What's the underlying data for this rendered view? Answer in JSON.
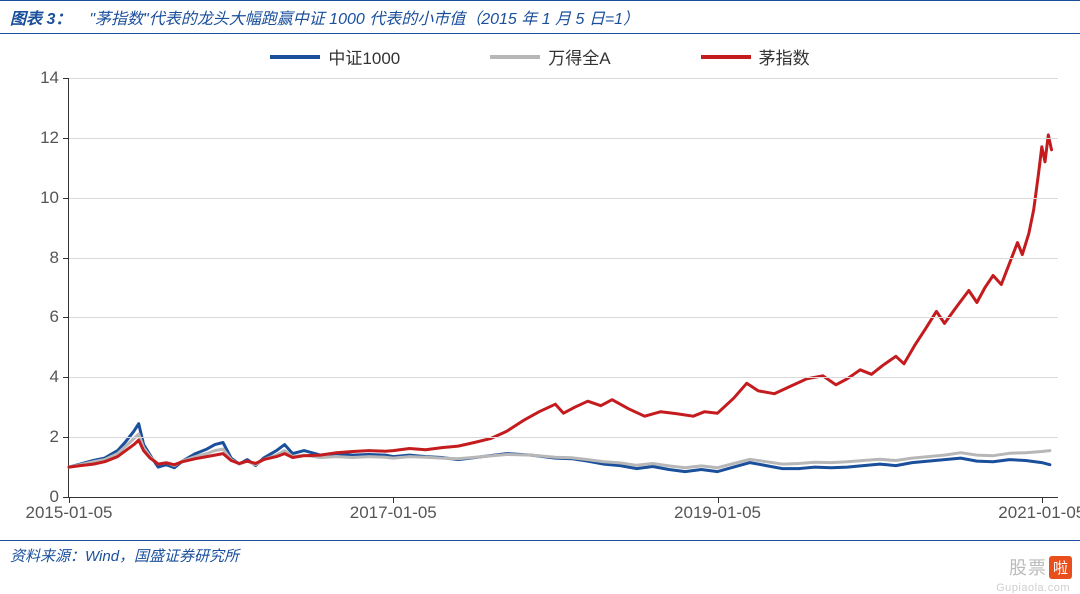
{
  "header": {
    "label": "图表 3：",
    "title": "\"茅指数\"代表的龙头大幅跑赢中证 1000 代表的小市值（2015 年 1 月 5 日=1）"
  },
  "footer": {
    "text": "资料来源：Wind，国盛证券研究所"
  },
  "watermark": {
    "main": "股票",
    "badge": "啦",
    "url": "Gupiaola.com"
  },
  "chart": {
    "type": "line",
    "background_color": "#ffffff",
    "grid_color": "#d9d9d9",
    "axis_color": "#333333",
    "label_color": "#555555",
    "label_fontsize": 17,
    "legend_fontsize": 17,
    "line_width": 3,
    "x_axis": {
      "min_t": 0,
      "max_t": 6.1,
      "ticks": [
        {
          "t": 0.0,
          "label": "2015-01-05"
        },
        {
          "t": 2.0,
          "label": "2017-01-05"
        },
        {
          "t": 4.0,
          "label": "2019-01-05"
        },
        {
          "t": 6.0,
          "label": "2021-01-05"
        }
      ]
    },
    "y_axis": {
      "min": 0,
      "max": 14,
      "ticks": [
        0,
        2,
        4,
        6,
        8,
        10,
        12,
        14
      ]
    },
    "series": [
      {
        "name": "中证1000",
        "color": "#1a4f9c",
        "data": [
          [
            0.0,
            1.0
          ],
          [
            0.07,
            1.1
          ],
          [
            0.15,
            1.22
          ],
          [
            0.22,
            1.3
          ],
          [
            0.3,
            1.55
          ],
          [
            0.35,
            1.85
          ],
          [
            0.4,
            2.2
          ],
          [
            0.43,
            2.45
          ],
          [
            0.46,
            1.75
          ],
          [
            0.5,
            1.4
          ],
          [
            0.55,
            1.0
          ],
          [
            0.6,
            1.08
          ],
          [
            0.65,
            0.98
          ],
          [
            0.7,
            1.2
          ],
          [
            0.78,
            1.45
          ],
          [
            0.85,
            1.6
          ],
          [
            0.9,
            1.75
          ],
          [
            0.95,
            1.82
          ],
          [
            1.0,
            1.3
          ],
          [
            1.05,
            1.1
          ],
          [
            1.1,
            1.25
          ],
          [
            1.15,
            1.05
          ],
          [
            1.2,
            1.3
          ],
          [
            1.28,
            1.55
          ],
          [
            1.33,
            1.75
          ],
          [
            1.38,
            1.45
          ],
          [
            1.45,
            1.55
          ],
          [
            1.55,
            1.4
          ],
          [
            1.65,
            1.45
          ],
          [
            1.75,
            1.4
          ],
          [
            1.85,
            1.42
          ],
          [
            1.95,
            1.4
          ],
          [
            2.0,
            1.35
          ],
          [
            2.1,
            1.4
          ],
          [
            2.2,
            1.35
          ],
          [
            2.3,
            1.32
          ],
          [
            2.4,
            1.25
          ],
          [
            2.55,
            1.35
          ],
          [
            2.7,
            1.45
          ],
          [
            2.85,
            1.4
          ],
          [
            3.0,
            1.3
          ],
          [
            3.1,
            1.28
          ],
          [
            3.2,
            1.2
          ],
          [
            3.3,
            1.1
          ],
          [
            3.4,
            1.05
          ],
          [
            3.5,
            0.95
          ],
          [
            3.6,
            1.02
          ],
          [
            3.7,
            0.92
          ],
          [
            3.8,
            0.85
          ],
          [
            3.9,
            0.92
          ],
          [
            4.0,
            0.85
          ],
          [
            4.1,
            1.0
          ],
          [
            4.2,
            1.15
          ],
          [
            4.3,
            1.05
          ],
          [
            4.4,
            0.95
          ],
          [
            4.5,
            0.95
          ],
          [
            4.6,
            1.0
          ],
          [
            4.7,
            0.98
          ],
          [
            4.8,
            1.0
          ],
          [
            4.9,
            1.05
          ],
          [
            5.0,
            1.1
          ],
          [
            5.1,
            1.05
          ],
          [
            5.2,
            1.15
          ],
          [
            5.3,
            1.2
          ],
          [
            5.4,
            1.25
          ],
          [
            5.5,
            1.3
          ],
          [
            5.6,
            1.2
          ],
          [
            5.7,
            1.18
          ],
          [
            5.8,
            1.25
          ],
          [
            5.9,
            1.22
          ],
          [
            6.0,
            1.15
          ],
          [
            6.05,
            1.08
          ]
        ]
      },
      {
        "name": "万得全A",
        "color": "#b7b7b7",
        "data": [
          [
            0.0,
            1.0
          ],
          [
            0.07,
            1.08
          ],
          [
            0.15,
            1.18
          ],
          [
            0.22,
            1.25
          ],
          [
            0.3,
            1.45
          ],
          [
            0.35,
            1.7
          ],
          [
            0.4,
            1.95
          ],
          [
            0.43,
            2.1
          ],
          [
            0.46,
            1.65
          ],
          [
            0.5,
            1.35
          ],
          [
            0.55,
            1.1
          ],
          [
            0.6,
            1.15
          ],
          [
            0.65,
            1.05
          ],
          [
            0.7,
            1.2
          ],
          [
            0.78,
            1.35
          ],
          [
            0.85,
            1.45
          ],
          [
            0.9,
            1.55
          ],
          [
            0.95,
            1.6
          ],
          [
            1.0,
            1.25
          ],
          [
            1.05,
            1.1
          ],
          [
            1.1,
            1.2
          ],
          [
            1.15,
            1.08
          ],
          [
            1.2,
            1.25
          ],
          [
            1.28,
            1.4
          ],
          [
            1.33,
            1.55
          ],
          [
            1.38,
            1.35
          ],
          [
            1.45,
            1.4
          ],
          [
            1.55,
            1.32
          ],
          [
            1.65,
            1.35
          ],
          [
            1.75,
            1.32
          ],
          [
            1.85,
            1.35
          ],
          [
            1.95,
            1.33
          ],
          [
            2.0,
            1.3
          ],
          [
            2.1,
            1.35
          ],
          [
            2.2,
            1.33
          ],
          [
            2.3,
            1.3
          ],
          [
            2.4,
            1.28
          ],
          [
            2.55,
            1.35
          ],
          [
            2.7,
            1.42
          ],
          [
            2.85,
            1.4
          ],
          [
            3.0,
            1.33
          ],
          [
            3.1,
            1.31
          ],
          [
            3.2,
            1.25
          ],
          [
            3.3,
            1.18
          ],
          [
            3.4,
            1.14
          ],
          [
            3.5,
            1.06
          ],
          [
            3.6,
            1.12
          ],
          [
            3.7,
            1.04
          ],
          [
            3.8,
            0.98
          ],
          [
            3.9,
            1.04
          ],
          [
            4.0,
            0.98
          ],
          [
            4.1,
            1.12
          ],
          [
            4.2,
            1.26
          ],
          [
            4.3,
            1.18
          ],
          [
            4.4,
            1.1
          ],
          [
            4.5,
            1.12
          ],
          [
            4.6,
            1.16
          ],
          [
            4.7,
            1.15
          ],
          [
            4.8,
            1.18
          ],
          [
            4.9,
            1.22
          ],
          [
            5.0,
            1.26
          ],
          [
            5.1,
            1.22
          ],
          [
            5.2,
            1.3
          ],
          [
            5.3,
            1.35
          ],
          [
            5.4,
            1.4
          ],
          [
            5.5,
            1.48
          ],
          [
            5.6,
            1.4
          ],
          [
            5.7,
            1.38
          ],
          [
            5.8,
            1.46
          ],
          [
            5.9,
            1.48
          ],
          [
            6.0,
            1.52
          ],
          [
            6.05,
            1.55
          ]
        ]
      },
      {
        "name": "茅指数",
        "color": "#c41b1e",
        "data": [
          [
            0.0,
            1.0
          ],
          [
            0.07,
            1.05
          ],
          [
            0.15,
            1.1
          ],
          [
            0.22,
            1.18
          ],
          [
            0.3,
            1.35
          ],
          [
            0.35,
            1.55
          ],
          [
            0.4,
            1.75
          ],
          [
            0.43,
            1.9
          ],
          [
            0.46,
            1.55
          ],
          [
            0.5,
            1.3
          ],
          [
            0.55,
            1.1
          ],
          [
            0.6,
            1.14
          ],
          [
            0.65,
            1.08
          ],
          [
            0.7,
            1.18
          ],
          [
            0.78,
            1.28
          ],
          [
            0.85,
            1.35
          ],
          [
            0.9,
            1.4
          ],
          [
            0.95,
            1.45
          ],
          [
            1.0,
            1.22
          ],
          [
            1.05,
            1.12
          ],
          [
            1.1,
            1.2
          ],
          [
            1.15,
            1.12
          ],
          [
            1.2,
            1.25
          ],
          [
            1.28,
            1.35
          ],
          [
            1.33,
            1.45
          ],
          [
            1.38,
            1.32
          ],
          [
            1.45,
            1.38
          ],
          [
            1.55,
            1.4
          ],
          [
            1.65,
            1.48
          ],
          [
            1.75,
            1.52
          ],
          [
            1.85,
            1.55
          ],
          [
            1.95,
            1.53
          ],
          [
            2.0,
            1.55
          ],
          [
            2.1,
            1.62
          ],
          [
            2.2,
            1.58
          ],
          [
            2.3,
            1.65
          ],
          [
            2.4,
            1.7
          ],
          [
            2.5,
            1.82
          ],
          [
            2.6,
            1.95
          ],
          [
            2.7,
            2.2
          ],
          [
            2.8,
            2.55
          ],
          [
            2.9,
            2.85
          ],
          [
            3.0,
            3.1
          ],
          [
            3.05,
            2.8
          ],
          [
            3.12,
            3.0
          ],
          [
            3.2,
            3.2
          ],
          [
            3.28,
            3.05
          ],
          [
            3.35,
            3.25
          ],
          [
            3.45,
            2.95
          ],
          [
            3.55,
            2.7
          ],
          [
            3.65,
            2.85
          ],
          [
            3.75,
            2.78
          ],
          [
            3.85,
            2.7
          ],
          [
            3.92,
            2.85
          ],
          [
            4.0,
            2.8
          ],
          [
            4.1,
            3.3
          ],
          [
            4.18,
            3.8
          ],
          [
            4.25,
            3.55
          ],
          [
            4.35,
            3.45
          ],
          [
            4.45,
            3.7
          ],
          [
            4.55,
            3.95
          ],
          [
            4.65,
            4.05
          ],
          [
            4.73,
            3.75
          ],
          [
            4.8,
            3.95
          ],
          [
            4.88,
            4.25
          ],
          [
            4.95,
            4.1
          ],
          [
            5.02,
            4.4
          ],
          [
            5.1,
            4.7
          ],
          [
            5.15,
            4.45
          ],
          [
            5.22,
            5.1
          ],
          [
            5.28,
            5.6
          ],
          [
            5.35,
            6.2
          ],
          [
            5.4,
            5.8
          ],
          [
            5.48,
            6.4
          ],
          [
            5.55,
            6.9
          ],
          [
            5.6,
            6.5
          ],
          [
            5.65,
            7.0
          ],
          [
            5.7,
            7.4
          ],
          [
            5.75,
            7.1
          ],
          [
            5.8,
            7.8
          ],
          [
            5.85,
            8.5
          ],
          [
            5.88,
            8.1
          ],
          [
            5.92,
            8.8
          ],
          [
            5.95,
            9.6
          ],
          [
            5.98,
            10.8
          ],
          [
            6.0,
            11.7
          ],
          [
            6.02,
            11.2
          ],
          [
            6.04,
            12.1
          ],
          [
            6.06,
            11.6
          ]
        ]
      }
    ]
  }
}
